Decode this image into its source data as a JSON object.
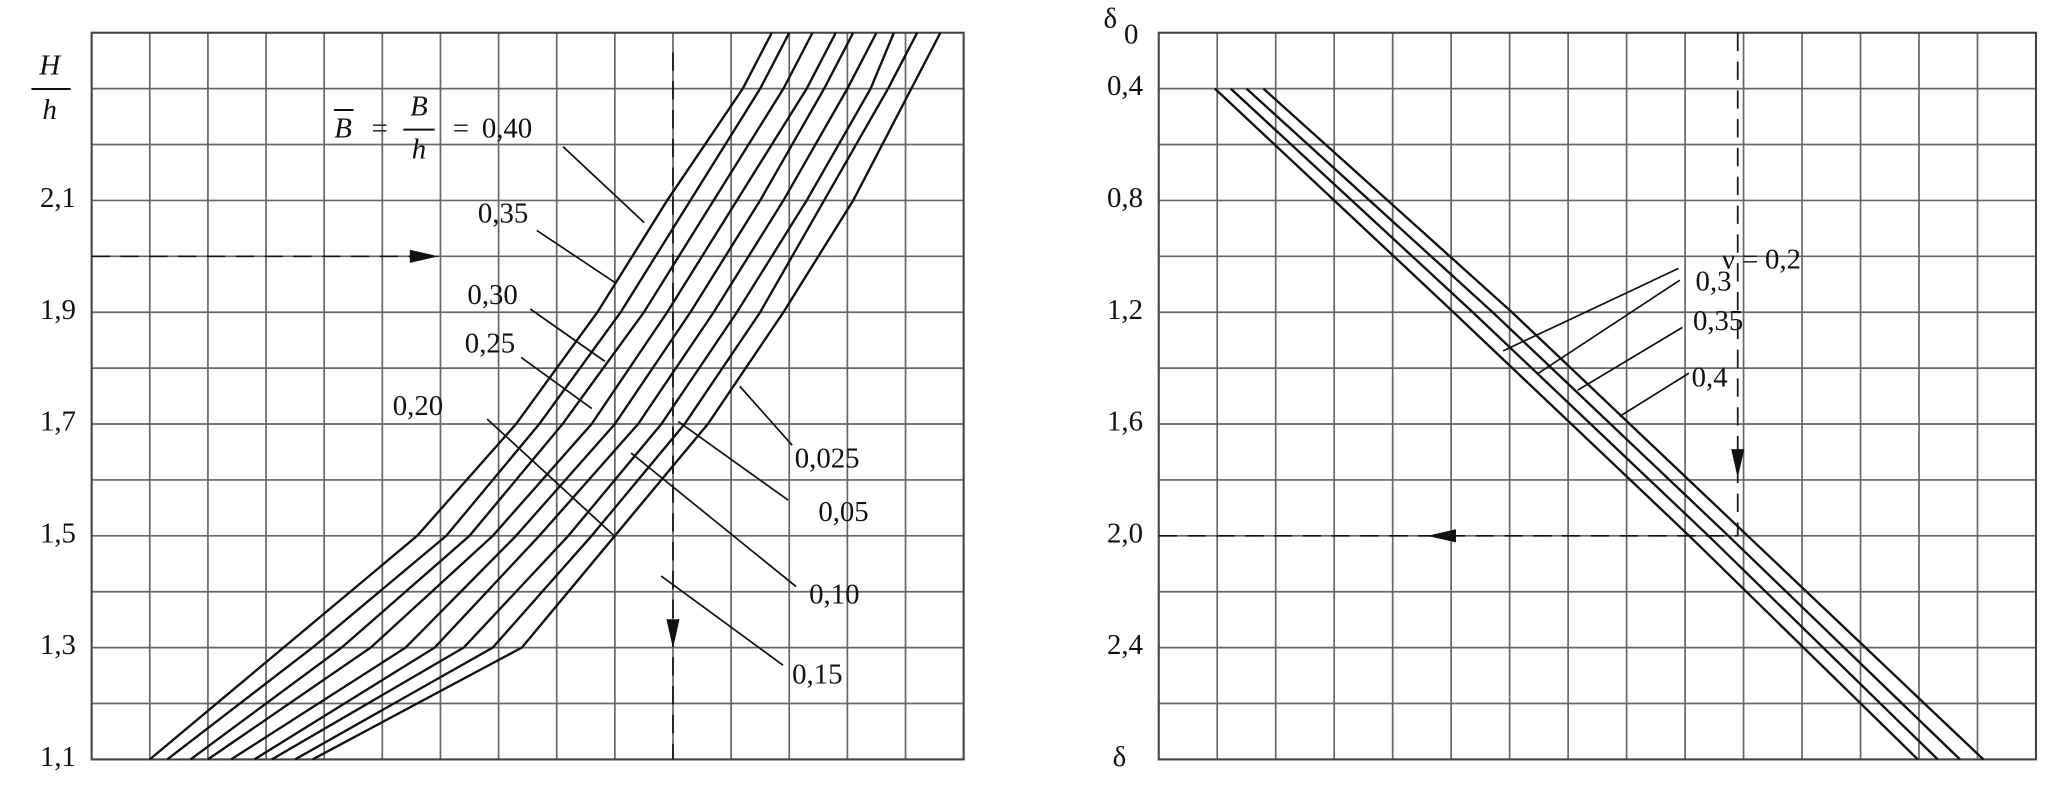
{
  "chart_data": [
    {
      "type": "line",
      "y_label": {
        "top": "H",
        "bottom": "h"
      },
      "legend_prefix": {
        "b_bar": "B",
        "eq": "=",
        "b": "B",
        "h": "h"
      },
      "xlim": [
        0,
        15
      ],
      "x_grid": [
        1,
        2,
        3,
        4,
        5,
        6,
        7,
        8,
        9,
        10,
        11,
        12,
        13,
        14
      ],
      "ylim": [
        1.1,
        2.4
      ],
      "yticks": [
        {
          "value": 1.1,
          "label": "1,1"
        },
        {
          "value": 1.3,
          "label": "1,3"
        },
        {
          "value": 1.5,
          "label": "1,5"
        },
        {
          "value": 1.7,
          "label": "1,7"
        },
        {
          "value": 1.9,
          "label": "1,9"
        },
        {
          "value": 2.1,
          "label": "2,1"
        }
      ],
      "y_grid": [
        1.2,
        1.4,
        1.6,
        1.8,
        2.0,
        2.2,
        2.3
      ],
      "guide": {
        "x": 10.0,
        "y": 2.0
      },
      "series": [
        {
          "name": "0,40",
          "color": "#111111",
          "x": [
            1.0,
            3.3,
            5.6,
            7.3,
            8.7,
            9.9,
            11.2,
            11.7
          ],
          "values": [
            1.1,
            1.3,
            1.5,
            1.7,
            1.9,
            2.1,
            2.3,
            2.4
          ]
        },
        {
          "name": "0,35",
          "color": "#111111",
          "x": [
            1.3,
            3.8,
            6.1,
            7.7,
            9.1,
            10.3,
            11.5,
            12.0
          ],
          "values": [
            1.1,
            1.3,
            1.5,
            1.7,
            1.9,
            2.1,
            2.3,
            2.4
          ]
        },
        {
          "name": "0,30",
          "color": "#111111",
          "x": [
            1.7,
            4.3,
            6.5,
            8.1,
            9.5,
            10.7,
            11.9,
            12.4
          ],
          "values": [
            1.1,
            1.3,
            1.5,
            1.7,
            1.9,
            2.1,
            2.3,
            2.4
          ]
        },
        {
          "name": "0,25",
          "color": "#111111",
          "x": [
            2.0,
            4.8,
            6.9,
            8.6,
            9.9,
            11.1,
            12.3,
            12.8
          ],
          "values": [
            1.1,
            1.3,
            1.5,
            1.7,
            1.9,
            2.1,
            2.3,
            2.4
          ]
        },
        {
          "name": "0,20",
          "color": "#111111",
          "x": [
            2.4,
            5.4,
            7.3,
            9.0,
            10.3,
            11.5,
            12.6,
            13.1
          ],
          "values": [
            1.1,
            1.3,
            1.5,
            1.7,
            1.9,
            2.1,
            2.3,
            2.4
          ]
        },
        {
          "name": "0,15",
          "color": "#111111",
          "x": [
            2.8,
            5.9,
            7.7,
            9.4,
            10.7,
            11.9,
            13.0,
            13.5
          ],
          "values": [
            1.1,
            1.3,
            1.5,
            1.7,
            1.9,
            2.1,
            2.3,
            2.4
          ]
        },
        {
          "name": "0,10",
          "color": "#111111",
          "x": [
            3.1,
            6.4,
            8.2,
            9.8,
            11.1,
            12.3,
            13.4,
            13.8
          ],
          "values": [
            1.1,
            1.3,
            1.5,
            1.7,
            1.9,
            2.1,
            2.3,
            2.4
          ]
        },
        {
          "name": "0,05",
          "color": "#111111",
          "x": [
            3.5,
            6.9,
            8.6,
            10.2,
            11.5,
            12.6,
            13.7,
            14.2
          ],
          "values": [
            1.1,
            1.3,
            1.5,
            1.7,
            1.9,
            2.1,
            2.3,
            2.4
          ]
        },
        {
          "name": "0,025",
          "color": "#111111",
          "x": [
            3.8,
            7.4,
            9.0,
            10.6,
            11.9,
            13.1,
            14.1,
            14.6
          ],
          "values": [
            1.1,
            1.3,
            1.5,
            1.7,
            1.9,
            2.1,
            2.3,
            2.4
          ]
        }
      ]
    },
    {
      "type": "line",
      "y_label": {
        "main": "δ",
        "sub": "0"
      },
      "x_label": "δ",
      "legend_prefix": "ν =",
      "xlim": [
        0,
        15
      ],
      "x_grid": [
        1,
        2,
        3,
        4,
        5,
        6,
        7,
        8,
        9,
        10,
        11,
        12,
        13,
        14
      ],
      "ylim": [
        2.8,
        0.2
      ],
      "yticks": [
        {
          "value": 0.4,
          "label": "0,4"
        },
        {
          "value": 0.8,
          "label": "0,8"
        },
        {
          "value": 1.2,
          "label": "1,2"
        },
        {
          "value": 1.6,
          "label": "1,6"
        },
        {
          "value": 2.0,
          "label": "2,0"
        },
        {
          "value": 2.4,
          "label": "2,4"
        }
      ],
      "y_grid": [
        0.6,
        1.0,
        1.4,
        1.8,
        2.2,
        2.6
      ],
      "guide": {
        "x": 9.9,
        "y": 2.0
      },
      "series": [
        {
          "name": "0,2",
          "color": "#111111",
          "x": [
            0.96,
            5.04,
            9.07,
            12.98
          ],
          "values": [
            0.4,
            1.2,
            2.0,
            2.8
          ]
        },
        {
          "name": "0,3",
          "color": "#111111",
          "x": [
            1.23,
            5.37,
            9.4,
            13.32
          ],
          "values": [
            0.4,
            1.2,
            2.0,
            2.8
          ]
        },
        {
          "name": "0,35",
          "color": "#111111",
          "x": [
            1.5,
            5.71,
            9.74,
            13.7
          ],
          "values": [
            0.4,
            1.2,
            2.0,
            2.8
          ]
        },
        {
          "name": "0,4",
          "color": "#111111",
          "x": [
            1.79,
            6.04,
            10.07,
            14.1
          ],
          "values": [
            0.4,
            1.2,
            2.0,
            2.8
          ]
        }
      ]
    }
  ]
}
